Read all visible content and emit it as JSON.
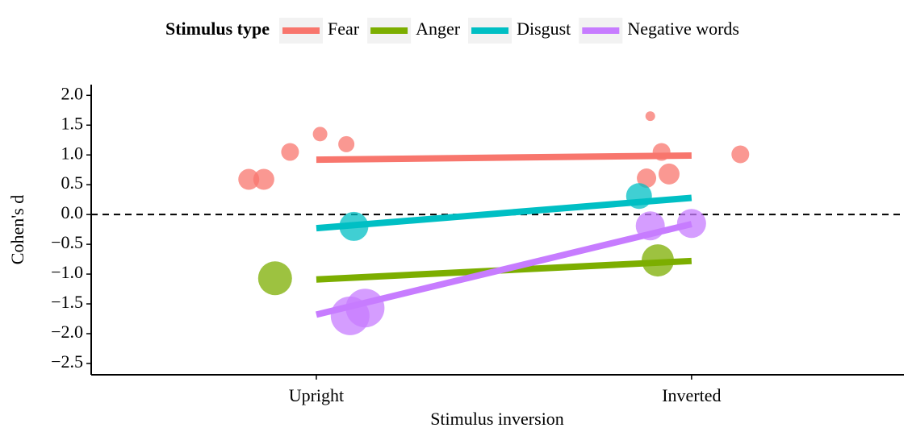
{
  "chart_data": {
    "type": "scatter",
    "legend_title": "Stimulus type",
    "xlabel": "Stimulus inversion",
    "ylabel": "Cohen's d",
    "xlim": [
      0.4,
      2.566
    ],
    "xticks": [
      {
        "value": 1,
        "label": "Upright"
      },
      {
        "value": 2,
        "label": "Inverted"
      }
    ],
    "ylim": [
      -2.69,
      2.18
    ],
    "yticks": [
      {
        "value": 2,
        "label": "2.0"
      },
      {
        "value": 1.5,
        "label": "1.5"
      },
      {
        "value": 1,
        "label": "1.0"
      },
      {
        "value": 0.5,
        "label": "0.5"
      },
      {
        "value": 0,
        "label": "0.0"
      },
      {
        "value": -0.5,
        "label": "−0.5"
      },
      {
        "value": -1,
        "label": "−1.0"
      },
      {
        "value": -1.5,
        "label": "−1.5"
      },
      {
        "value": -2,
        "label": "−2.0"
      },
      {
        "value": -2.5,
        "label": "−2.5"
      }
    ],
    "hline": 0,
    "legend_position": "top",
    "fit_x": [
      1,
      2
    ],
    "series": [
      {
        "name": "Fear",
        "color": "#f8766d",
        "x": [
          0.82,
          0.86,
          0.93,
          1.01,
          1.08,
          1.89,
          1.92,
          1.88,
          1.94,
          2.13
        ],
        "values": [
          0.59,
          0.59,
          1.05,
          1.35,
          1.18,
          1.65,
          1.05,
          0.61,
          0.68,
          1.01
        ],
        "sizes": [
          13,
          13,
          11,
          9,
          10,
          6,
          11,
          12,
          13,
          11
        ],
        "fit": [
          0.92,
          0.99
        ]
      },
      {
        "name": "Anger",
        "color": "#7cae00",
        "x": [
          0.89,
          1.91
        ],
        "values": [
          -1.07,
          -0.77
        ],
        "sizes": [
          21,
          20
        ],
        "fit": [
          -1.09,
          -0.78
        ]
      },
      {
        "name": "Disgust",
        "color": "#00bfc4",
        "x": [
          1.1,
          1.86
        ],
        "values": [
          -0.2,
          0.31
        ],
        "sizes": [
          18,
          16
        ],
        "fit": [
          -0.23,
          0.28
        ]
      },
      {
        "name": "Negative words",
        "color": "#c77cff",
        "x": [
          1.09,
          1.13,
          1.89,
          2.0
        ],
        "values": [
          -1.7,
          -1.57,
          -0.19,
          -0.15
        ],
        "sizes": [
          24,
          24,
          18,
          18
        ],
        "fit": [
          -1.68,
          -0.16
        ]
      }
    ]
  }
}
